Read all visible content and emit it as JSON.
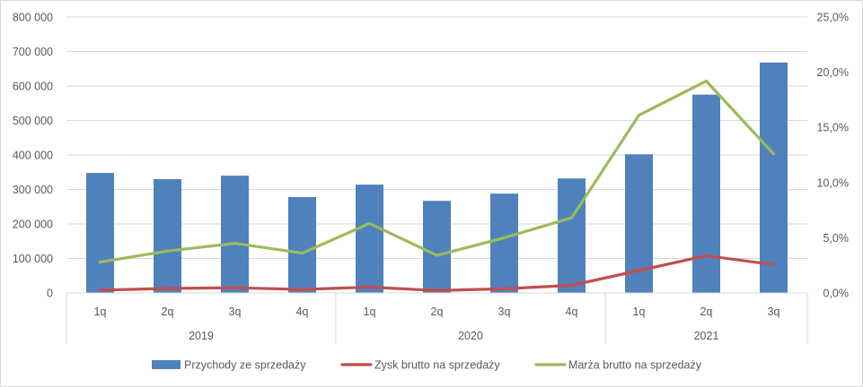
{
  "chart_data": {
    "type": "bar",
    "categories": [
      "1q",
      "2q",
      "3q",
      "4q",
      "1q",
      "2q",
      "3q",
      "4q",
      "1q",
      "2q",
      "3q"
    ],
    "groups": [
      {
        "label": "2019",
        "span": 4
      },
      {
        "label": "2020",
        "span": 4
      },
      {
        "label": "2021",
        "span": 3
      }
    ],
    "series": [
      {
        "name": "Przychody ze sprzedaży",
        "type": "bar",
        "axis": "left",
        "color": "#4f81bd",
        "values": [
          348000,
          330000,
          340000,
          278000,
          314000,
          267000,
          288000,
          332000,
          402000,
          575000,
          668000
        ]
      },
      {
        "name": "Zysk brutto na sprzedaży",
        "type": "line",
        "axis": "left",
        "color": "#c0504d",
        "values": [
          8000,
          13000,
          15000,
          10000,
          17000,
          7000,
          12000,
          22000,
          65000,
          108000,
          82000
        ]
      },
      {
        "name": "Marża brutto na sprzedaży",
        "type": "line",
        "axis": "right",
        "color": "#9bbb59",
        "values": [
          2.8,
          3.8,
          4.5,
          3.6,
          6.3,
          3.4,
          5.0,
          6.8,
          16.1,
          19.2,
          12.6
        ]
      }
    ],
    "left_axis": {
      "min": 0,
      "max": 800000,
      "step": 100000,
      "ticks": [
        "0",
        "100 000",
        "200 000",
        "300 000",
        "400 000",
        "500 000",
        "600 000",
        "700 000",
        "800 000"
      ]
    },
    "right_axis": {
      "min": 0,
      "max": 25,
      "step": 5,
      "ticks": [
        "0,0%",
        "5,0%",
        "10,0%",
        "15,0%",
        "20,0%",
        "25,0%"
      ]
    },
    "grid": true,
    "legend_position": "bottom"
  }
}
